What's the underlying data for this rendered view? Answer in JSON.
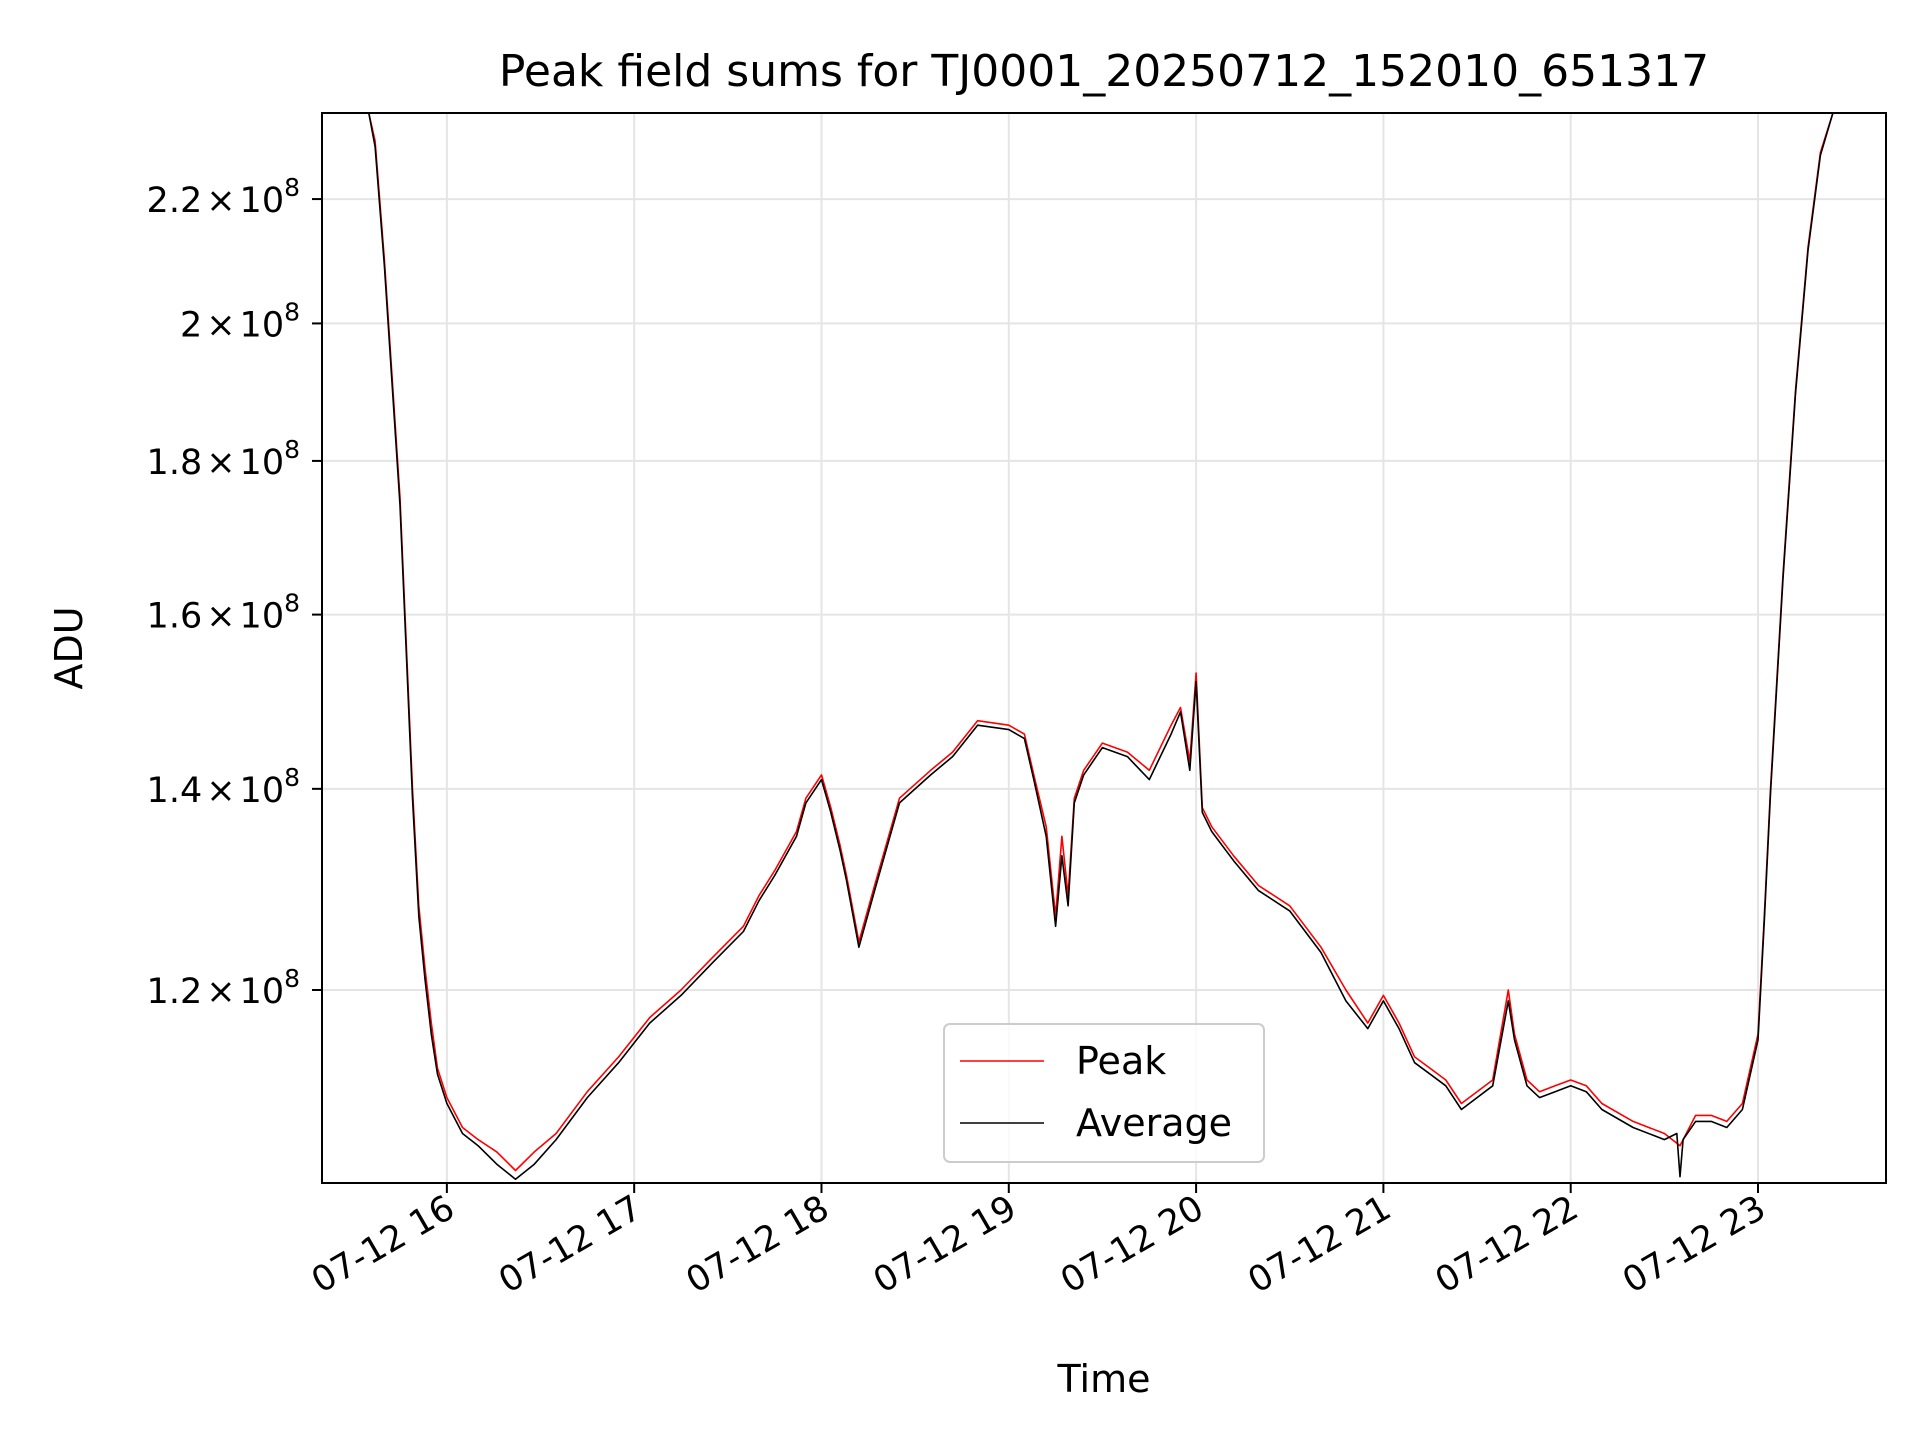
{
  "chart_data": {
    "type": "line",
    "title": "Peak field sums for TJ0001_20250712_152010_651317",
    "xlabel": "Time",
    "ylabel": "ADU",
    "yscale": "log",
    "ylim": [
      103500000,
      235000000
    ],
    "xlim": [
      "2025-07-12 15:20",
      "2025-07-12 23:41"
    ],
    "x_ticks": [
      {
        "t": "2025-07-12 16:00",
        "label": "07-12 16"
      },
      {
        "t": "2025-07-12 17:00",
        "label": "07-12 17"
      },
      {
        "t": "2025-07-12 18:00",
        "label": "07-12 18"
      },
      {
        "t": "2025-07-12 19:00",
        "label": "07-12 19"
      },
      {
        "t": "2025-07-12 20:00",
        "label": "07-12 20"
      },
      {
        "t": "2025-07-12 21:00",
        "label": "07-12 21"
      },
      {
        "t": "2025-07-12 22:00",
        "label": "07-12 22"
      },
      {
        "t": "2025-07-12 23:00",
        "label": "07-12 23"
      }
    ],
    "y_ticks": [
      {
        "value": 120000000,
        "mantissa": "1.2",
        "exponent": "8"
      },
      {
        "value": 140000000,
        "mantissa": "1.4",
        "exponent": "8"
      },
      {
        "value": 160000000,
        "mantissa": "1.6",
        "exponent": "8"
      },
      {
        "value": 180000000,
        "mantissa": "1.8",
        "exponent": "8"
      },
      {
        "value": 200000000,
        "mantissa": "2",
        "exponent": "8"
      },
      {
        "value": 220000000,
        "mantissa": "2.2",
        "exponent": "8"
      }
    ],
    "grid": true,
    "legend": {
      "position": "lower center"
    },
    "series": [
      {
        "name": "Peak",
        "color": "#ff0000",
        "x": [
          "2025-07-12 15:35",
          "2025-07-12 15:37",
          "2025-07-12 15:40",
          "2025-07-12 15:45",
          "2025-07-12 15:49",
          "2025-07-12 15:51",
          "2025-07-12 15:53",
          "2025-07-12 15:55",
          "2025-07-12 15:57",
          "2025-07-12 16:00",
          "2025-07-12 16:05",
          "2025-07-12 16:10",
          "2025-07-12 16:16",
          "2025-07-12 16:22",
          "2025-07-12 16:28",
          "2025-07-12 16:35",
          "2025-07-12 16:45",
          "2025-07-12 16:55",
          "2025-07-12 17:05",
          "2025-07-12 17:15",
          "2025-07-12 17:25",
          "2025-07-12 17:35",
          "2025-07-12 17:40",
          "2025-07-12 17:45",
          "2025-07-12 17:52",
          "2025-07-12 17:55",
          "2025-07-12 18:00",
          "2025-07-12 18:03",
          "2025-07-12 18:06",
          "2025-07-12 18:08",
          "2025-07-12 18:12",
          "2025-07-12 18:17",
          "2025-07-12 18:25",
          "2025-07-12 18:35",
          "2025-07-12 18:42",
          "2025-07-12 18:50",
          "2025-07-12 19:00",
          "2025-07-12 19:05",
          "2025-07-12 19:08",
          "2025-07-12 19:12",
          "2025-07-12 19:15",
          "2025-07-12 19:17",
          "2025-07-12 19:19",
          "2025-07-12 19:21",
          "2025-07-12 19:24",
          "2025-07-12 19:30",
          "2025-07-12 19:38",
          "2025-07-12 19:45",
          "2025-07-12 19:52",
          "2025-07-12 19:55",
          "2025-07-12 19:58",
          "2025-07-12 20:00",
          "2025-07-12 20:02",
          "2025-07-12 20:05",
          "2025-07-12 20:12",
          "2025-07-12 20:20",
          "2025-07-12 20:30",
          "2025-07-12 20:40",
          "2025-07-12 20:48",
          "2025-07-12 20:55",
          "2025-07-12 21:00",
          "2025-07-12 21:05",
          "2025-07-12 21:10",
          "2025-07-12 21:15",
          "2025-07-12 21:20",
          "2025-07-12 21:25",
          "2025-07-12 21:35",
          "2025-07-12 21:40",
          "2025-07-12 21:42",
          "2025-07-12 21:46",
          "2025-07-12 21:50",
          "2025-07-12 21:55",
          "2025-07-12 22:00",
          "2025-07-12 22:05",
          "2025-07-12 22:10",
          "2025-07-12 22:20",
          "2025-07-12 22:30",
          "2025-07-12 22:35",
          "2025-07-12 22:40",
          "2025-07-12 22:45",
          "2025-07-12 22:50",
          "2025-07-12 22:55",
          "2025-07-12 23:00",
          "2025-07-12 23:02",
          "2025-07-12 23:04",
          "2025-07-12 23:08",
          "2025-07-12 23:12",
          "2025-07-12 23:16",
          "2025-07-12 23:20",
          "2025-07-12 23:24"
        ],
        "y": [
          235000000,
          230000000,
          210000000,
          175000000,
          140000000,
          128000000,
          122000000,
          117000000,
          113000000,
          110500000,
          108000000,
          107000000,
          106000000,
          104500000,
          106000000,
          107500000,
          111000000,
          114000000,
          117500000,
          120000000,
          123000000,
          126000000,
          129000000,
          131500000,
          135500000,
          139000000,
          141500000,
          138000000,
          134000000,
          131000000,
          124500000,
          130000000,
          139000000,
          142000000,
          144000000,
          147500000,
          147000000,
          146000000,
          141500000,
          136000000,
          127000000,
          135000000,
          129000000,
          139000000,
          142000000,
          145000000,
          144000000,
          142000000,
          147000000,
          149000000,
          143000000,
          153000000,
          138000000,
          136000000,
          133000000,
          130000000,
          128000000,
          124000000,
          120000000,
          117000000,
          119500000,
          117000000,
          114000000,
          113000000,
          112000000,
          110000000,
          112000000,
          120000000,
          116000000,
          112000000,
          111000000,
          111500000,
          112000000,
          111500000,
          110000000,
          108500000,
          107500000,
          106500000,
          109000000,
          109000000,
          108500000,
          110000000,
          116000000,
          127000000,
          140000000,
          165000000,
          190000000,
          212000000,
          228000000,
          235000000
        ]
      },
      {
        "name": "Average",
        "color": "#000000",
        "x": [
          "2025-07-12 15:35",
          "2025-07-12 15:37",
          "2025-07-12 15:40",
          "2025-07-12 15:45",
          "2025-07-12 15:49",
          "2025-07-12 15:51",
          "2025-07-12 15:53",
          "2025-07-12 15:55",
          "2025-07-12 15:57",
          "2025-07-12 16:00",
          "2025-07-12 16:05",
          "2025-07-12 16:10",
          "2025-07-12 16:16",
          "2025-07-12 16:22",
          "2025-07-12 16:28",
          "2025-07-12 16:35",
          "2025-07-12 16:45",
          "2025-07-12 16:55",
          "2025-07-12 17:05",
          "2025-07-12 17:15",
          "2025-07-12 17:25",
          "2025-07-12 17:35",
          "2025-07-12 17:40",
          "2025-07-12 17:45",
          "2025-07-12 17:52",
          "2025-07-12 17:55",
          "2025-07-12 18:00",
          "2025-07-12 18:03",
          "2025-07-12 18:06",
          "2025-07-12 18:08",
          "2025-07-12 18:12",
          "2025-07-12 18:17",
          "2025-07-12 18:25",
          "2025-07-12 18:35",
          "2025-07-12 18:42",
          "2025-07-12 18:50",
          "2025-07-12 19:00",
          "2025-07-12 19:05",
          "2025-07-12 19:08",
          "2025-07-12 19:12",
          "2025-07-12 19:15",
          "2025-07-12 19:17",
          "2025-07-12 19:19",
          "2025-07-12 19:21",
          "2025-07-12 19:24",
          "2025-07-12 19:30",
          "2025-07-12 19:38",
          "2025-07-12 19:45",
          "2025-07-12 19:52",
          "2025-07-12 19:55",
          "2025-07-12 19:58",
          "2025-07-12 20:00",
          "2025-07-12 20:02",
          "2025-07-12 20:05",
          "2025-07-12 20:12",
          "2025-07-12 20:20",
          "2025-07-12 20:30",
          "2025-07-12 20:40",
          "2025-07-12 20:48",
          "2025-07-12 20:55",
          "2025-07-12 21:00",
          "2025-07-12 21:05",
          "2025-07-12 21:10",
          "2025-07-12 21:15",
          "2025-07-12 21:20",
          "2025-07-12 21:25",
          "2025-07-12 21:35",
          "2025-07-12 21:40",
          "2025-07-12 21:42",
          "2025-07-12 21:46",
          "2025-07-12 21:50",
          "2025-07-12 21:55",
          "2025-07-12 22:00",
          "2025-07-12 22:05",
          "2025-07-12 22:10",
          "2025-07-12 22:20",
          "2025-07-12 22:30",
          "2025-07-12 22:34",
          "2025-07-12 22:35",
          "2025-07-12 22:36",
          "2025-07-12 22:40",
          "2025-07-12 22:45",
          "2025-07-12 22:50",
          "2025-07-12 22:55",
          "2025-07-12 23:00",
          "2025-07-12 23:02",
          "2025-07-12 23:04",
          "2025-07-12 23:08",
          "2025-07-12 23:12",
          "2025-07-12 23:16",
          "2025-07-12 23:20",
          "2025-07-12 23:24"
        ],
        "y": [
          235000000,
          229000000,
          209000000,
          174000000,
          139000000,
          127000000,
          121000000,
          116000000,
          112500000,
          110000000,
          107500000,
          106500000,
          105000000,
          103800000,
          105000000,
          107000000,
          110500000,
          113500000,
          117000000,
          119500000,
          122500000,
          125500000,
          128500000,
          131000000,
          135000000,
          138500000,
          141000000,
          137500000,
          133500000,
          130500000,
          124000000,
          129500000,
          138500000,
          141500000,
          143500000,
          147000000,
          146500000,
          145500000,
          141000000,
          135000000,
          126000000,
          133000000,
          128000000,
          138500000,
          141500000,
          144500000,
          143500000,
          141000000,
          146000000,
          148500000,
          142000000,
          152000000,
          137500000,
          135500000,
          132500000,
          129500000,
          127500000,
          123500000,
          119000000,
          116500000,
          119000000,
          116500000,
          113500000,
          112500000,
          111500000,
          109500000,
          111500000,
          119000000,
          115500000,
          111500000,
          110500000,
          111000000,
          111500000,
          111000000,
          109500000,
          108000000,
          107000000,
          107500000,
          104000000,
          107000000,
          108500000,
          108500000,
          108000000,
          109500000,
          115500000,
          126500000,
          139500000,
          164500000,
          189500000,
          211500000,
          227500000,
          235000000
        ]
      }
    ]
  }
}
